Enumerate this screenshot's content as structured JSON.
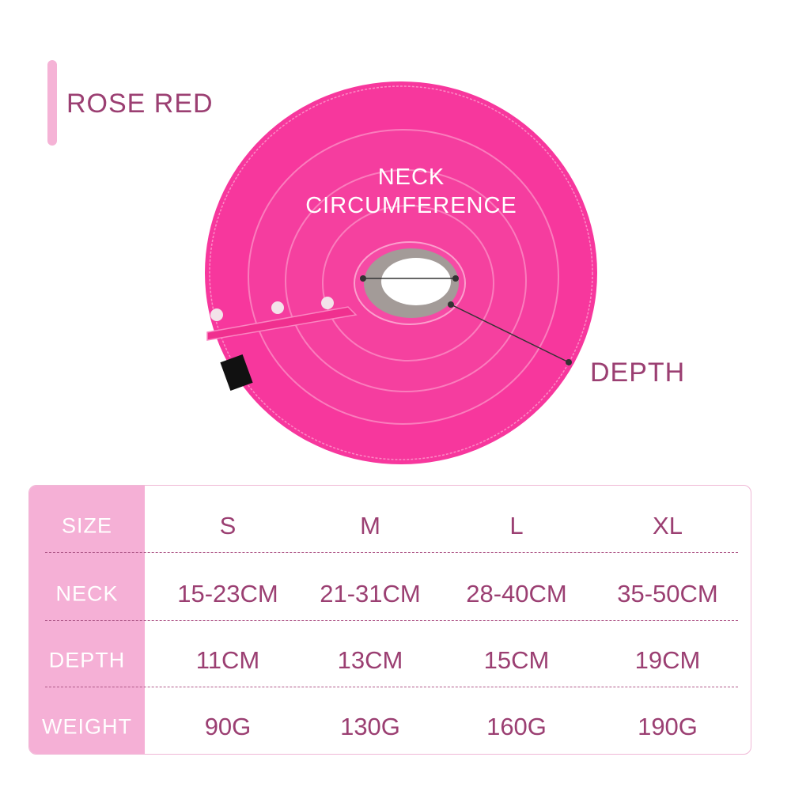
{
  "color_name": "ROSE RED",
  "labels": {
    "neck": "NECK CIRCUMFERENCE",
    "depth": "DEPTH"
  },
  "colors": {
    "collar": "#f7379d",
    "text": "#9b3f72",
    "table_header": "#f5b0d6"
  },
  "table": {
    "rows": [
      {
        "label": "SIZE",
        "values": [
          "S",
          "M",
          "L",
          "XL"
        ]
      },
      {
        "label": "NECK",
        "values": [
          "15-23CM",
          "21-31CM",
          "28-40CM",
          "35-50CM"
        ]
      },
      {
        "label": "DEPTH",
        "values": [
          "11CM",
          "13CM",
          "15CM",
          "19CM"
        ]
      },
      {
        "label": "WEIGHT",
        "values": [
          "90G",
          "130G",
          "160G",
          "190G"
        ]
      }
    ]
  }
}
